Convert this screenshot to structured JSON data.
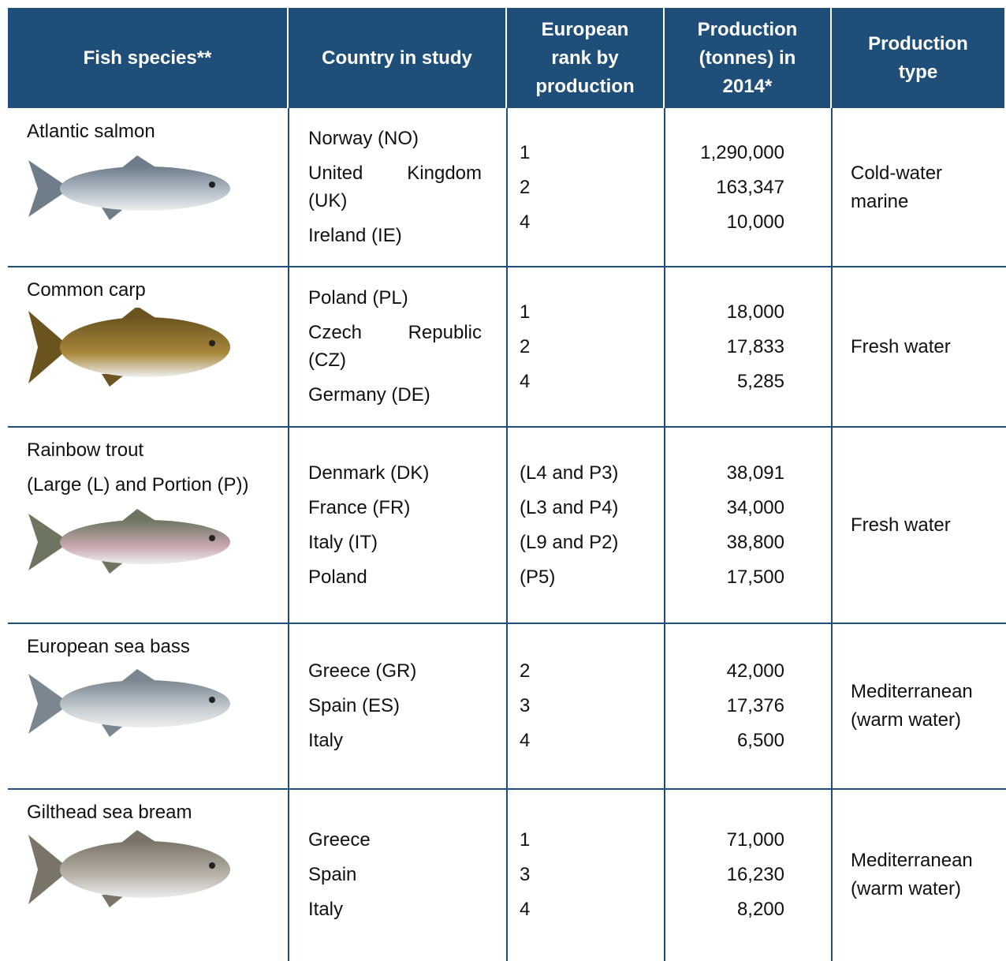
{
  "header": {
    "columns": [
      "Fish species**",
      "Country in study",
      "European rank by production",
      "Production (tonnes) in 2014*",
      "Production type"
    ]
  },
  "rows": [
    {
      "species": "Atlantic salmon",
      "countries": [
        "Norway (NO)",
        "United Kingdom (UK)",
        "Ireland (IE)"
      ],
      "ranks": [
        "1",
        "2",
        "4"
      ],
      "production": [
        "1,290,000",
        "163,347",
        "10,000"
      ],
      "type": "Cold-water marine"
    },
    {
      "species": "Common carp",
      "countries": [
        "Poland (PL)",
        "Czech Republic (CZ)",
        "Germany (DE)"
      ],
      "ranks": [
        "1",
        "2",
        "4"
      ],
      "production": [
        "18,000",
        "17,833",
        "5,285"
      ],
      "type": "Fresh water"
    },
    {
      "species": "Rainbow trout",
      "note": "(Large (L) and Portion (P))",
      "countries": [
        "Denmark (DK)",
        "France (FR)",
        "Italy (IT)",
        "Poland"
      ],
      "ranks": [
        "(L4 and P3)",
        "(L3 and P4)",
        "(L9 and P2)",
        "(P5)"
      ],
      "production": [
        "38,091",
        "34,000",
        "38,800",
        "17,500"
      ],
      "type": "Fresh water"
    },
    {
      "species": "European sea bass",
      "countries": [
        "Greece (GR)",
        "Spain (ES)",
        "Italy"
      ],
      "ranks": [
        "2",
        "3",
        "4"
      ],
      "production": [
        "42,000",
        "17,376",
        "6,500"
      ],
      "type": "Mediterranean (warm water)"
    },
    {
      "species": "Gilthead sea bream",
      "countries": [
        "Greece",
        "Spain",
        "Italy"
      ],
      "ranks": [
        "1",
        "3",
        "4"
      ],
      "production": [
        "71,000",
        "16,230",
        "8,200"
      ],
      "type": "Mediterranean (warm water)"
    }
  ]
}
